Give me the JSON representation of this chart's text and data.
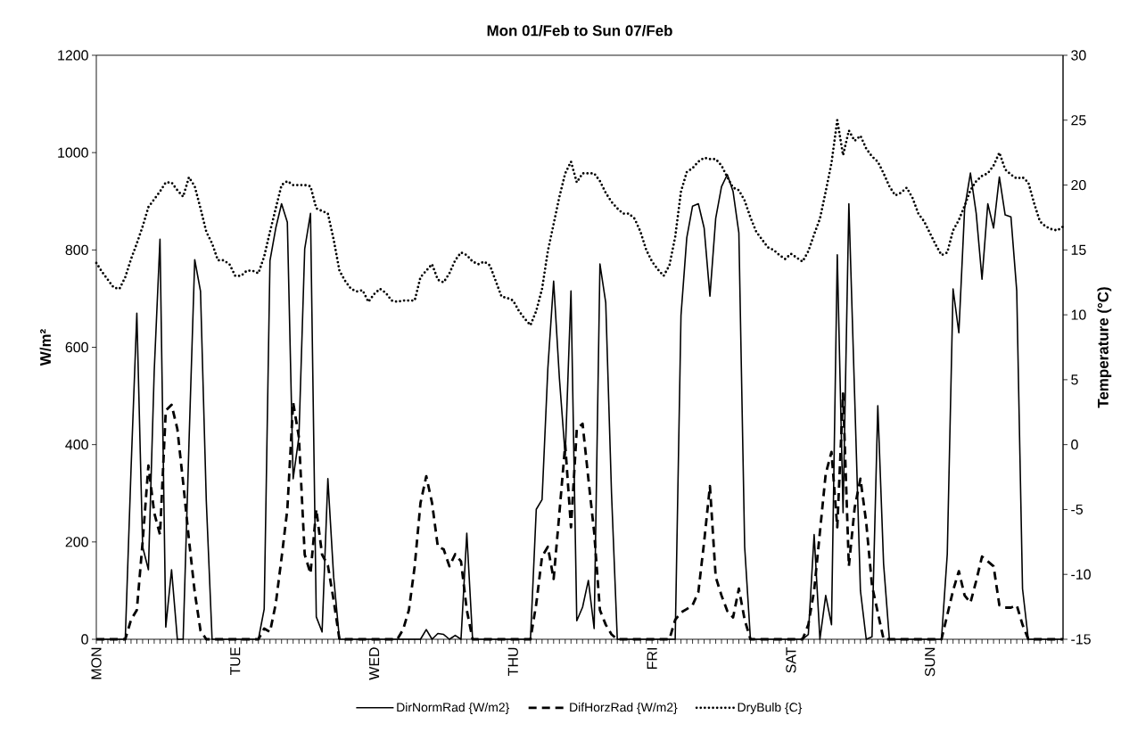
{
  "chart_data": {
    "type": "line",
    "title": "Mon 01/Feb to Sun 07/Feb",
    "ylabel": "W/m²",
    "y2label": "Temperature (°C)",
    "categories": [
      "MON",
      null,
      null,
      null,
      null,
      null,
      null,
      null,
      null,
      null,
      null,
      null,
      null,
      null,
      null,
      null,
      null,
      null,
      null,
      null,
      null,
      null,
      null,
      null,
      "TUE",
      null,
      null,
      null,
      null,
      null,
      null,
      null,
      null,
      null,
      null,
      null,
      null,
      null,
      null,
      null,
      null,
      null,
      null,
      null,
      null,
      null,
      null,
      null,
      "WED",
      null,
      null,
      null,
      null,
      null,
      null,
      null,
      null,
      null,
      null,
      null,
      null,
      null,
      null,
      null,
      null,
      null,
      null,
      null,
      null,
      null,
      null,
      null,
      "THU",
      null,
      null,
      null,
      null,
      null,
      null,
      null,
      null,
      null,
      null,
      null,
      null,
      null,
      null,
      null,
      null,
      null,
      null,
      null,
      null,
      null,
      null,
      null,
      "FRI",
      null,
      null,
      null,
      null,
      null,
      null,
      null,
      null,
      null,
      null,
      null,
      null,
      null,
      null,
      null,
      null,
      null,
      null,
      null,
      null,
      null,
      null,
      null,
      "SAT",
      null,
      null,
      null,
      null,
      null,
      null,
      null,
      null,
      null,
      null,
      null,
      null,
      null,
      null,
      null,
      null,
      null,
      null,
      null,
      null,
      null,
      null,
      null,
      "SUN",
      null,
      null,
      null,
      null,
      null,
      null,
      null,
      null,
      null,
      null,
      null,
      null,
      null,
      null,
      null,
      null,
      null,
      null,
      null,
      null,
      null,
      null,
      null
    ],
    "series": [
      {
        "name": "DirNormRad {W/m2}",
        "color": "#000000",
        "line_style": "solid",
        "axis": "y",
        "values": [
          0,
          0,
          0,
          0,
          0,
          0,
          350,
          670,
          190,
          143,
          550,
          822,
          25,
          143,
          0,
          0,
          400,
          780,
          715,
          284,
          0,
          0,
          0,
          0,
          0,
          0,
          0,
          0,
          0,
          62,
          778,
          845,
          895,
          857,
          330,
          416,
          802,
          875,
          46,
          15,
          330,
          128,
          0,
          0,
          0,
          0,
          0,
          0,
          0,
          0,
          0,
          0,
          0,
          0,
          0,
          0,
          0,
          20,
          0,
          12,
          10,
          0,
          8,
          0,
          218,
          0,
          0,
          0,
          0,
          0,
          0,
          0,
          0,
          0,
          0,
          0,
          267,
          287,
          556,
          736,
          536,
          377,
          716,
          38,
          66,
          121,
          22,
          771,
          692,
          300,
          0,
          0,
          0,
          0,
          0,
          0,
          0,
          0,
          0,
          0,
          0,
          665,
          825,
          890,
          895,
          845,
          705,
          865,
          930,
          955,
          920,
          835,
          190,
          0,
          0,
          0,
          0,
          0,
          0,
          0,
          0,
          0,
          0,
          10,
          215,
          0,
          90,
          30,
          790,
          260,
          895,
          500,
          100,
          0,
          5,
          480,
          155,
          0,
          0,
          0,
          0,
          0,
          0,
          0,
          0,
          0,
          0,
          175,
          720,
          630,
          885,
          958,
          875,
          740,
          895,
          845,
          950,
          872,
          868,
          716,
          104,
          0,
          0,
          0,
          0,
          0,
          0,
          0
        ]
      },
      {
        "name": "DifHorzRad {W/m2}",
        "color": "#000000",
        "line_style": "dashed",
        "axis": "y",
        "values": [
          0,
          0,
          0,
          0,
          0,
          0,
          40,
          60,
          200,
          357,
          260,
          215,
          470,
          482,
          432,
          322,
          205,
          97,
          18,
          0,
          0,
          0,
          0,
          0,
          0,
          0,
          0,
          0,
          0,
          22,
          15,
          73,
          167,
          267,
          487,
          415,
          174,
          135,
          267,
          174,
          152,
          80,
          0,
          0,
          0,
          0,
          0,
          0,
          0,
          0,
          0,
          0,
          0,
          20,
          60,
          150,
          280,
          335,
          280,
          190,
          185,
          150,
          175,
          160,
          60,
          0,
          0,
          0,
          0,
          0,
          0,
          0,
          0,
          0,
          0,
          0,
          73,
          170,
          190,
          124,
          260,
          400,
          230,
          432,
          443,
          330,
          220,
          60,
          30,
          10,
          0,
          0,
          0,
          0,
          0,
          0,
          0,
          0,
          0,
          0,
          40,
          55,
          62,
          70,
          97,
          200,
          315,
          128,
          90,
          58,
          45,
          104,
          40,
          0,
          0,
          0,
          0,
          0,
          0,
          0,
          0,
          0,
          0,
          30,
          100,
          220,
          340,
          385,
          230,
          505,
          150,
          270,
          330,
          240,
          110,
          55,
          0,
          0,
          0,
          0,
          0,
          0,
          0,
          0,
          0,
          0,
          0,
          50,
          100,
          140,
          90,
          75,
          120,
          170,
          160,
          150,
          70,
          65,
          65,
          70,
          30,
          0,
          0,
          0,
          0,
          0,
          0,
          0
        ]
      },
      {
        "name": "DryBulb {C}",
        "color": "#000000",
        "line_style": "dotted",
        "axis": "y2",
        "values": [
          14.0,
          13.3,
          12.7,
          12.1,
          12.0,
          12.9,
          14.3,
          15.5,
          16.8,
          18.3,
          18.9,
          19.5,
          20.2,
          20.2,
          19.6,
          19.1,
          20.6,
          19.9,
          18.2,
          16.4,
          15.5,
          14.2,
          14.2,
          13.9,
          13.0,
          13.0,
          13.4,
          13.4,
          13.2,
          14.5,
          16.4,
          18.2,
          20.0,
          20.3,
          20.0,
          20.0,
          20.0,
          19.9,
          18.2,
          18.0,
          17.8,
          15.8,
          13.4,
          12.6,
          12.0,
          11.8,
          11.9,
          11.0,
          11.6,
          12.0,
          11.7,
          11.1,
          11.0,
          11.1,
          11.1,
          11.1,
          12.9,
          13.4,
          13.9,
          12.7,
          12.5,
          13.2,
          14.2,
          14.8,
          14.6,
          14.1,
          13.9,
          14.1,
          13.8,
          12.6,
          11.4,
          11.3,
          11.1,
          10.3,
          9.7,
          9.2,
          10.3,
          12.0,
          14.9,
          17.0,
          19.1,
          20.9,
          21.8,
          20.2,
          20.9,
          20.9,
          20.9,
          20.3,
          19.4,
          18.7,
          18.2,
          17.8,
          17.8,
          17.4,
          16.4,
          15.0,
          14.1,
          13.5,
          13.0,
          13.8,
          16.0,
          19.5,
          21.0,
          21.3,
          21.8,
          22.1,
          22.0,
          22.0,
          21.5,
          20.6,
          19.8,
          19.6,
          18.8,
          17.5,
          16.4,
          15.8,
          15.2,
          15.0,
          14.6,
          14.3,
          14.7,
          14.4,
          14.1,
          14.9,
          16.2,
          17.4,
          19.5,
          21.7,
          25.0,
          22.3,
          24.2,
          23.4,
          23.8,
          22.8,
          22.2,
          21.8,
          20.9,
          19.9,
          19.2,
          19.4,
          19.8,
          19.0,
          17.8,
          17.2,
          16.3,
          15.4,
          14.6,
          14.8,
          16.5,
          17.3,
          18.4,
          19.6,
          20.3,
          20.7,
          20.9,
          21.5,
          22.5,
          21.2,
          20.8,
          20.5,
          20.6,
          20.2,
          18.6,
          17.2,
          16.8,
          16.6,
          16.5,
          16.8
        ]
      }
    ],
    "ylim": [
      0,
      1200
    ],
    "yticks": [
      0,
      200,
      400,
      600,
      800,
      1000,
      1200
    ],
    "y2lim": [
      -15,
      30
    ],
    "y2ticks": [
      -15,
      -10,
      -5,
      0,
      5,
      10,
      15,
      20,
      25,
      30
    ],
    "legend": "bottom",
    "marker": "none"
  }
}
